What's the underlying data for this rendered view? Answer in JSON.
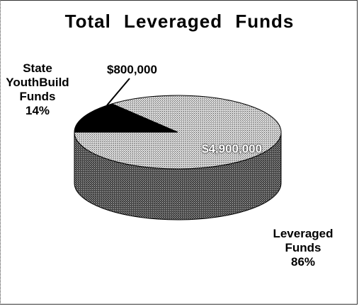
{
  "chart_data": {
    "type": "pie3d",
    "title": "Total Leveraged Funds",
    "categories": [
      "State YouthBuild Funds",
      "Leveraged Funds"
    ],
    "values": [
      800000,
      4900000
    ],
    "value_labels": [
      "$800,000",
      "$4,900,000"
    ],
    "percents": [
      14,
      86
    ],
    "percent_labels": [
      "14%",
      "86%"
    ],
    "colors": [
      "#000000",
      "#c8c8c8"
    ]
  }
}
